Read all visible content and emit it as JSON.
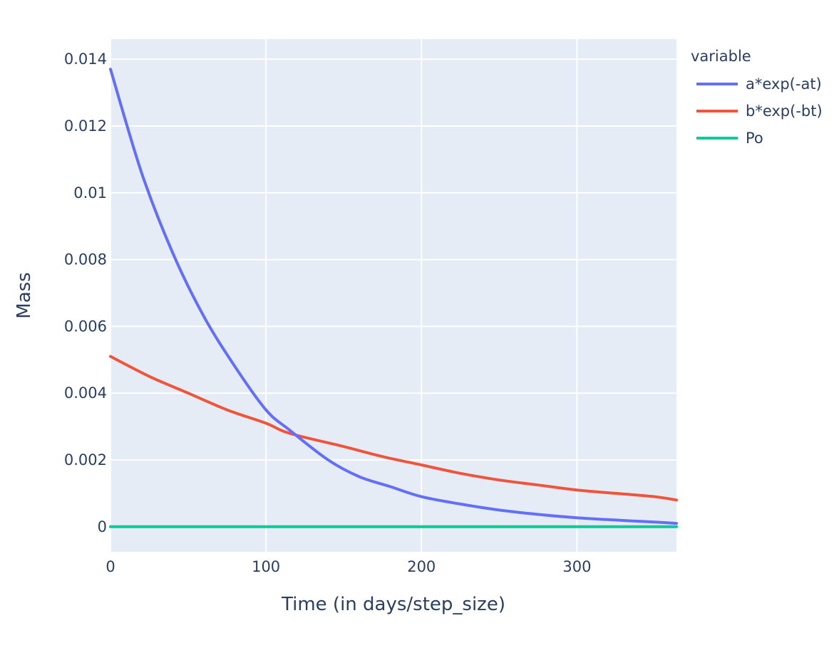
{
  "chart_data": {
    "type": "line",
    "title": "",
    "xlabel": "Time (in days/step_size)",
    "ylabel": "Mass",
    "xlim": [
      0,
      364
    ],
    "ylim": [
      -0.00075,
      0.0146
    ],
    "xticks": [
      0,
      100,
      200,
      300
    ],
    "xtick_labels": [
      "0",
      "100",
      "200",
      "300"
    ],
    "yticks": [
      0,
      0.002,
      0.004,
      0.006,
      0.008,
      0.01,
      0.012,
      0.014
    ],
    "ytick_labels": [
      "0",
      "0.002",
      "0.004",
      "0.006",
      "0.008",
      "0.01",
      "0.012",
      "0.014"
    ],
    "grid": true,
    "legend_title": "variable",
    "legend_position": "right",
    "background_color": "#e5ecf6",
    "series": [
      {
        "name": "a*exp(-at)",
        "color": "#636efa",
        "x": [
          0,
          20,
          40,
          60,
          80,
          100,
          115,
          140,
          160,
          180,
          200,
          225,
          250,
          275,
          300,
          325,
          350,
          364
        ],
        "y": [
          0.0137,
          0.0106,
          0.0082,
          0.0063,
          0.0048,
          0.0035,
          0.0029,
          0.002,
          0.0015,
          0.0012,
          0.0009,
          0.00068,
          0.0005,
          0.00037,
          0.00027,
          0.0002,
          0.00014,
          0.0001
        ]
      },
      {
        "name": "b*exp(-bt)",
        "color": "#ef553b",
        "x": [
          0,
          25,
          50,
          75,
          100,
          115,
          150,
          175,
          200,
          225,
          250,
          275,
          300,
          325,
          350,
          364
        ],
        "y": [
          0.0051,
          0.0045,
          0.004,
          0.0035,
          0.0031,
          0.0028,
          0.0024,
          0.0021,
          0.00185,
          0.0016,
          0.0014,
          0.00125,
          0.0011,
          0.001,
          0.0009,
          0.0008
        ]
      },
      {
        "name": "Po",
        "color": "#00cc96",
        "x": [
          0,
          364
        ],
        "y": [
          0,
          0
        ]
      }
    ]
  }
}
